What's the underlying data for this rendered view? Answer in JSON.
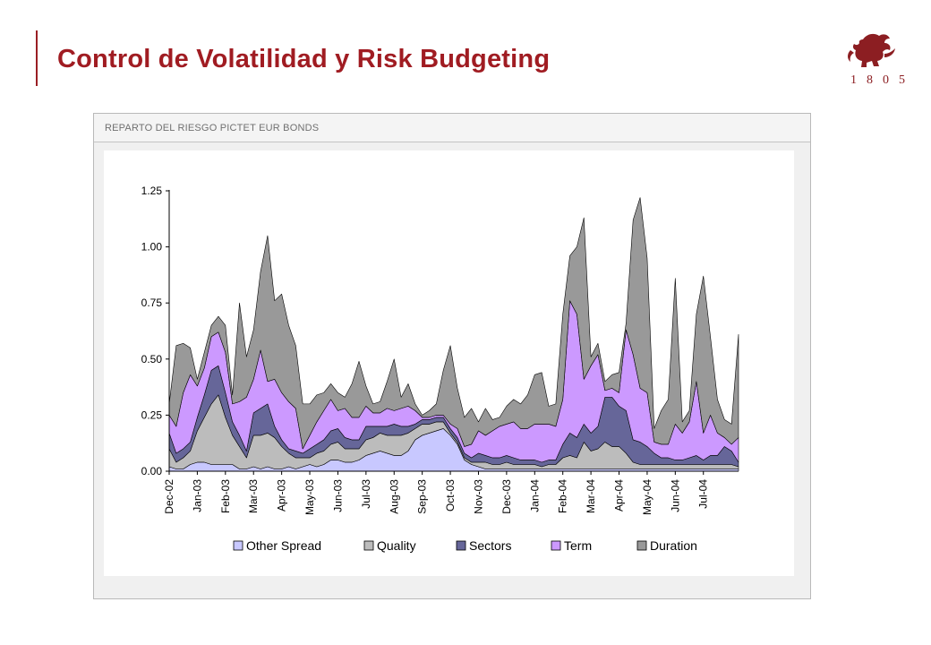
{
  "header": {
    "title": "Control de Volatilidad y Risk Budgeting",
    "logo_year": "1805",
    "logo_icon": "lion-crest-icon",
    "accent_color": "#a01c22"
  },
  "panel": {
    "title": "REPARTO DEL RIESGO PICTET EUR BONDS"
  },
  "chart_data": {
    "type": "area",
    "stacked": true,
    "title": "",
    "xlabel": "",
    "ylabel": "",
    "ylim": [
      0,
      1.25
    ],
    "yticks": [
      "0.00",
      "0.25",
      "0.50",
      "0.75",
      "1.00",
      "1.25"
    ],
    "xtick_labels": [
      "Dec-02",
      "Jan-03",
      "Feb-03",
      "Mar-03",
      "Apr-03",
      "May-03",
      "Jun-03",
      "Jul-03",
      "Aug-03",
      "Sep-03",
      "Oct-03",
      "Nov-03",
      "Dec-03",
      "Jan-04",
      "Feb-04",
      "Mar-04",
      "Apr-04",
      "May-04",
      "Jun-04",
      "Jul-04"
    ],
    "points_per_month": 4,
    "x": [
      "Dec-02",
      "",
      "",
      "",
      "Jan-03",
      "",
      "",
      "",
      "Feb-03",
      "",
      "",
      "",
      "Mar-03",
      "",
      "",
      "",
      "Apr-03",
      "",
      "",
      "",
      "May-03",
      "",
      "",
      "",
      "Jun-03",
      "",
      "",
      "",
      "Jul-03",
      "",
      "",
      "",
      "Aug-03",
      "",
      "",
      "",
      "Sep-03",
      "",
      "",
      "",
      "Oct-03",
      "",
      "",
      "",
      "Nov-03",
      "",
      "",
      "",
      "Dec-03",
      "",
      "",
      "",
      "Jan-04",
      "",
      "",
      "",
      "Feb-04",
      "",
      "",
      "",
      "Mar-04",
      "",
      "",
      "",
      "Apr-04",
      "",
      "",
      "",
      "May-04",
      "",
      "",
      "",
      "Jun-04",
      "",
      "",
      "",
      "Jul-04",
      "",
      "",
      "",
      "",
      ""
    ],
    "legend_position": "bottom",
    "grid": false,
    "series": [
      {
        "name": "Other Spread",
        "color": "#c8c8ff",
        "values": [
          0.02,
          0.01,
          0.01,
          0.03,
          0.04,
          0.04,
          0.03,
          0.03,
          0.03,
          0.03,
          0.01,
          0.01,
          0.02,
          0.01,
          0.02,
          0.01,
          0.01,
          0.02,
          0.01,
          0.02,
          0.03,
          0.02,
          0.03,
          0.05,
          0.05,
          0.04,
          0.04,
          0.05,
          0.07,
          0.08,
          0.09,
          0.08,
          0.07,
          0.07,
          0.09,
          0.14,
          0.16,
          0.17,
          0.18,
          0.19,
          0.16,
          0.12,
          0.05,
          0.03,
          0.02,
          0.01,
          0.01,
          0.01,
          0.01,
          0.01,
          0.01,
          0.01,
          0.01,
          0.01,
          0.01,
          0.01,
          0.01,
          0.01,
          0.01,
          0.01,
          0.01,
          0.01,
          0.01,
          0.01,
          0.01,
          0.01,
          0.01,
          0.01,
          0.01,
          0.01,
          0.01,
          0.01,
          0.01,
          0.01,
          0.01,
          0.01,
          0.01,
          0.01,
          0.01,
          0.01,
          0.01,
          0.01
        ]
      },
      {
        "name": "Quality",
        "color": "#bcbcbc",
        "values": [
          0.08,
          0.03,
          0.05,
          0.06,
          0.14,
          0.2,
          0.27,
          0.31,
          0.21,
          0.13,
          0.1,
          0.05,
          0.14,
          0.15,
          0.15,
          0.14,
          0.1,
          0.06,
          0.05,
          0.04,
          0.03,
          0.06,
          0.06,
          0.07,
          0.08,
          0.06,
          0.06,
          0.05,
          0.07,
          0.07,
          0.08,
          0.08,
          0.09,
          0.09,
          0.08,
          0.05,
          0.05,
          0.04,
          0.04,
          0.03,
          0.01,
          0.01,
          0.01,
          0.01,
          0.02,
          0.03,
          0.02,
          0.02,
          0.03,
          0.02,
          0.02,
          0.02,
          0.02,
          0.01,
          0.02,
          0.02,
          0.05,
          0.06,
          0.05,
          0.12,
          0.08,
          0.09,
          0.12,
          0.1,
          0.1,
          0.07,
          0.03,
          0.02,
          0.02,
          0.02,
          0.02,
          0.02,
          0.02,
          0.02,
          0.02,
          0.02,
          0.02,
          0.02,
          0.02,
          0.02,
          0.02,
          0.01
        ]
      },
      {
        "name": "Sectors",
        "color": "#666699",
        "values": [
          0.07,
          0.04,
          0.04,
          0.04,
          0.06,
          0.1,
          0.15,
          0.13,
          0.11,
          0.06,
          0.05,
          0.03,
          0.1,
          0.12,
          0.13,
          0.05,
          0.03,
          0.02,
          0.03,
          0.02,
          0.04,
          0.04,
          0.05,
          0.06,
          0.06,
          0.05,
          0.04,
          0.04,
          0.06,
          0.05,
          0.03,
          0.04,
          0.05,
          0.04,
          0.03,
          0.02,
          0.02,
          0.02,
          0.02,
          0.02,
          0.02,
          0.02,
          0.02,
          0.02,
          0.04,
          0.03,
          0.03,
          0.03,
          0.03,
          0.03,
          0.02,
          0.02,
          0.02,
          0.02,
          0.02,
          0.02,
          0.06,
          0.1,
          0.09,
          0.08,
          0.08,
          0.1,
          0.2,
          0.22,
          0.18,
          0.19,
          0.1,
          0.1,
          0.08,
          0.05,
          0.03,
          0.03,
          0.02,
          0.02,
          0.03,
          0.04,
          0.02,
          0.04,
          0.04,
          0.08,
          0.06,
          0.02
        ]
      },
      {
        "name": "Term",
        "color": "#cc99ff",
        "values": [
          0.08,
          0.12,
          0.25,
          0.3,
          0.14,
          0.12,
          0.15,
          0.15,
          0.18,
          0.08,
          0.15,
          0.24,
          0.15,
          0.26,
          0.1,
          0.21,
          0.21,
          0.21,
          0.19,
          0.02,
          0.06,
          0.1,
          0.13,
          0.14,
          0.08,
          0.13,
          0.1,
          0.1,
          0.09,
          0.06,
          0.06,
          0.08,
          0.06,
          0.08,
          0.09,
          0.06,
          0.01,
          0.01,
          0.01,
          0.01,
          0.02,
          0.04,
          0.03,
          0.06,
          0.1,
          0.09,
          0.12,
          0.14,
          0.14,
          0.16,
          0.14,
          0.14,
          0.16,
          0.17,
          0.16,
          0.15,
          0.2,
          0.59,
          0.55,
          0.2,
          0.3,
          0.32,
          0.03,
          0.04,
          0.06,
          0.36,
          0.38,
          0.24,
          0.24,
          0.05,
          0.06,
          0.06,
          0.16,
          0.12,
          0.16,
          0.33,
          0.12,
          0.18,
          0.1,
          0.04,
          0.03,
          0.11
        ]
      },
      {
        "name": "Duration",
        "color": "#999999",
        "values": [
          0.05,
          0.36,
          0.22,
          0.12,
          0.03,
          0.07,
          0.05,
          0.07,
          0.12,
          0.04,
          0.44,
          0.18,
          0.22,
          0.35,
          0.65,
          0.35,
          0.44,
          0.34,
          0.28,
          0.2,
          0.14,
          0.12,
          0.08,
          0.07,
          0.08,
          0.05,
          0.15,
          0.25,
          0.09,
          0.04,
          0.05,
          0.12,
          0.23,
          0.05,
          0.1,
          0.03,
          0.01,
          0.03,
          0.05,
          0.2,
          0.35,
          0.18,
          0.13,
          0.16,
          0.04,
          0.12,
          0.05,
          0.04,
          0.08,
          0.1,
          0.11,
          0.15,
          0.22,
          0.23,
          0.08,
          0.1,
          0.38,
          0.2,
          0.3,
          0.72,
          0.04,
          0.05,
          0.04,
          0.06,
          0.09,
          0.03,
          0.6,
          0.85,
          0.6,
          0.06,
          0.15,
          0.2,
          0.65,
          0.05,
          0.05,
          0.3,
          0.7,
          0.35,
          0.15,
          0.08,
          0.09,
          0.46
        ]
      }
    ]
  }
}
